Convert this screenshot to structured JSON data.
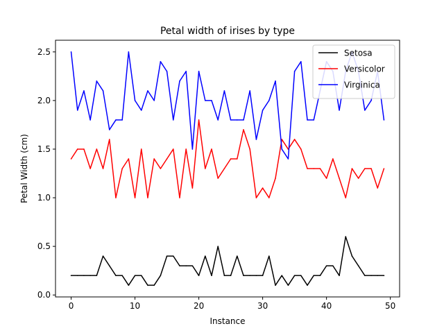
{
  "chart_data": {
    "type": "line",
    "title": "Petal width of irises by type",
    "xlabel": "Instance",
    "ylabel": "Petal Width (cm)",
    "xlim": [
      -2.45,
      51.45
    ],
    "ylim": [
      -0.02,
      2.62
    ],
    "x_ticks": [
      0,
      10,
      20,
      30,
      40,
      50
    ],
    "y_ticks": [
      0.0,
      0.5,
      1.0,
      1.5,
      2.0,
      2.5
    ],
    "y_tick_labels": [
      "0.0",
      "0.5",
      "1.0",
      "1.5",
      "2.0",
      "2.5"
    ],
    "grid": false,
    "legend_position": "top-right",
    "x": [
      0,
      1,
      2,
      3,
      4,
      5,
      6,
      7,
      8,
      9,
      10,
      11,
      12,
      13,
      14,
      15,
      16,
      17,
      18,
      19,
      20,
      21,
      22,
      23,
      24,
      25,
      26,
      27,
      28,
      29,
      30,
      31,
      32,
      33,
      34,
      35,
      36,
      37,
      38,
      39,
      40,
      41,
      42,
      43,
      44,
      45,
      46,
      47,
      48,
      49
    ],
    "series": [
      {
        "name": "Setosa",
        "color": "#000000",
        "values": [
          0.2,
          0.2,
          0.2,
          0.2,
          0.2,
          0.4,
          0.3,
          0.2,
          0.2,
          0.1,
          0.2,
          0.2,
          0.1,
          0.1,
          0.2,
          0.4,
          0.4,
          0.3,
          0.3,
          0.3,
          0.2,
          0.4,
          0.2,
          0.5,
          0.2,
          0.2,
          0.4,
          0.2,
          0.2,
          0.2,
          0.2,
          0.4,
          0.1,
          0.2,
          0.1,
          0.2,
          0.2,
          0.1,
          0.2,
          0.2,
          0.3,
          0.3,
          0.2,
          0.6,
          0.4,
          0.3,
          0.2,
          0.2,
          0.2,
          0.2
        ]
      },
      {
        "name": "Versicolor",
        "color": "#ff0000",
        "values": [
          1.4,
          1.5,
          1.5,
          1.3,
          1.5,
          1.3,
          1.6,
          1.0,
          1.3,
          1.4,
          1.0,
          1.5,
          1.0,
          1.4,
          1.3,
          1.4,
          1.5,
          1.0,
          1.5,
          1.1,
          1.8,
          1.3,
          1.5,
          1.2,
          1.3,
          1.4,
          1.4,
          1.7,
          1.5,
          1.0,
          1.1,
          1.0,
          1.2,
          1.6,
          1.5,
          1.6,
          1.5,
          1.3,
          1.3,
          1.3,
          1.2,
          1.4,
          1.2,
          1.0,
          1.3,
          1.2,
          1.3,
          1.3,
          1.1,
          1.3
        ]
      },
      {
        "name": "Virginica",
        "color": "#0000ff",
        "values": [
          2.5,
          1.9,
          2.1,
          1.8,
          2.2,
          2.1,
          1.7,
          1.8,
          1.8,
          2.5,
          2.0,
          1.9,
          2.1,
          2.0,
          2.4,
          2.3,
          1.8,
          2.2,
          2.3,
          1.5,
          2.3,
          2.0,
          2.0,
          1.8,
          2.1,
          1.8,
          1.8,
          1.8,
          2.1,
          1.6,
          1.9,
          2.0,
          2.2,
          1.5,
          1.4,
          2.3,
          2.4,
          1.8,
          1.8,
          2.1,
          2.4,
          2.3,
          1.9,
          2.3,
          2.5,
          2.3,
          1.9,
          2.0,
          2.3,
          1.8
        ]
      }
    ]
  }
}
